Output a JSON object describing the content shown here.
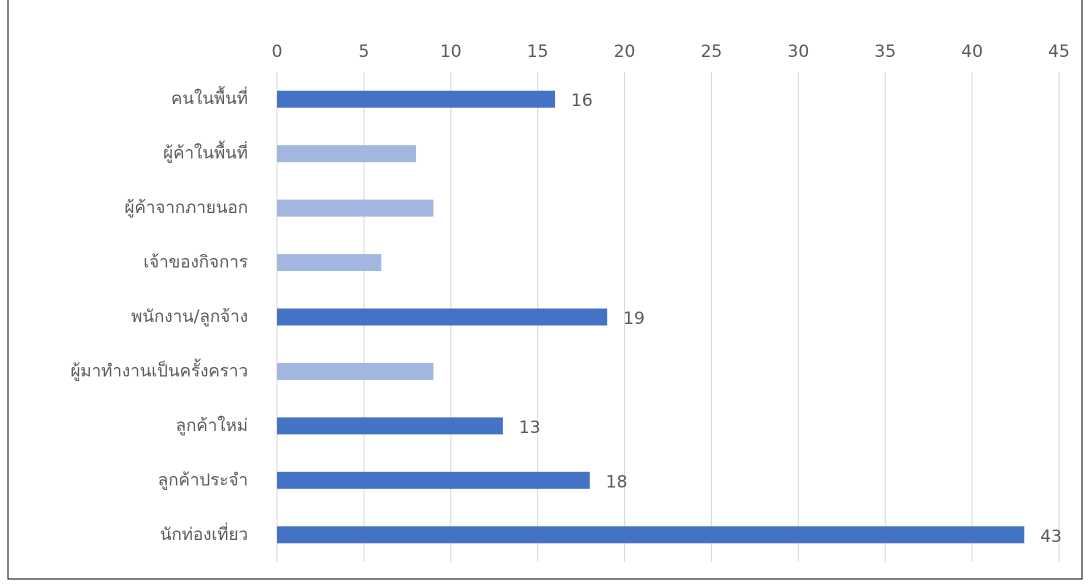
{
  "chart_data": {
    "type": "hbar",
    "categories": [
      "คนในพื้นที่",
      "ผู้ค้าในพื้นที่",
      "ผู้ค้าจากภายนอก",
      "เจ้าของกิจการ",
      "พนักงาน/ลูกจ้าง",
      "ผู้มาทำงานเป็นครั้งคราว",
      "ลูกค้าใหม่",
      "ลูกค้าประจำ",
      "นักท่องเที่ยว"
    ],
    "values": [
      16,
      8,
      9,
      6,
      19,
      9,
      13,
      18,
      43
    ],
    "value_labels": [
      "16",
      null,
      null,
      null,
      "19",
      null,
      "13",
      "18",
      "43"
    ],
    "colors": [
      "#4472c4",
      "#a3b6e0",
      "#a3b6e0",
      "#a3b6e0",
      "#4472c4",
      "#a3b6e0",
      "#4472c4",
      "#4472c4",
      "#4472c4"
    ],
    "xlim": [
      0,
      45
    ],
    "xticks": [
      0,
      5,
      10,
      15,
      20,
      25,
      30,
      35,
      40,
      45
    ],
    "grid": true
  }
}
